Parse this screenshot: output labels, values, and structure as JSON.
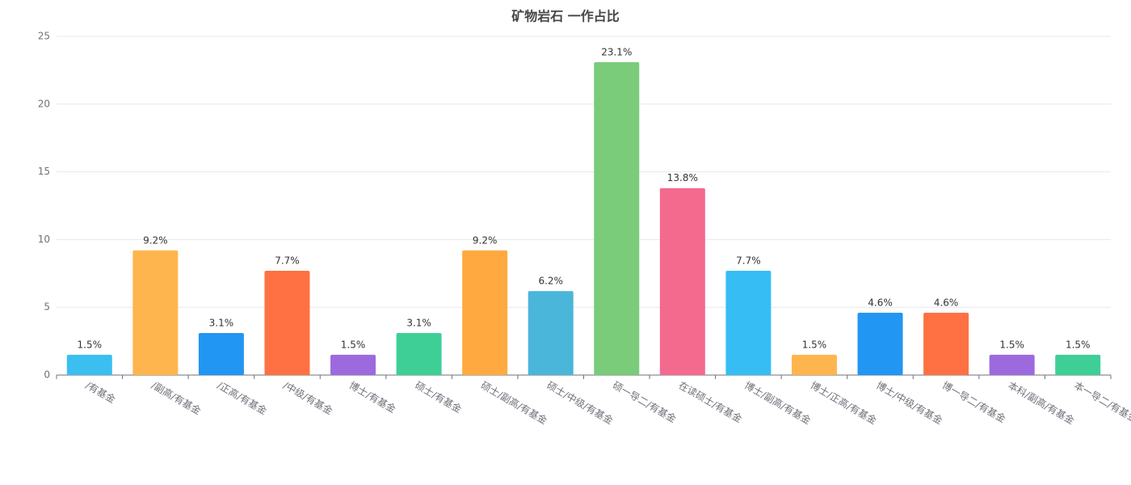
{
  "chart_data": {
    "type": "bar",
    "title": "矿物岩石 一作占比",
    "categories": [
      "/有基金",
      "/副高/有基金",
      "/正高/有基金",
      "/中级/有基金",
      "博士/有基金",
      "硕士/有基金",
      "硕士/副高/有基金",
      "硕士/中级/有基金",
      "硕一导二/有基金",
      "在读硕士/有基金",
      "博士/副高/有基金",
      "博士/正高/有基金",
      "博士/中级/有基金",
      "博一导二/有基金",
      "本科/副高/有基金",
      "本一导二/有基金"
    ],
    "values": [
      1.5,
      9.2,
      3.1,
      7.7,
      1.5,
      3.1,
      9.2,
      6.2,
      23.1,
      13.8,
      7.7,
      1.5,
      4.6,
      4.6,
      1.5,
      1.5
    ],
    "value_labels": [
      "1.5%",
      "9.2%",
      "3.1%",
      "7.7%",
      "1.5%",
      "3.1%",
      "9.2%",
      "6.2%",
      "23.1%",
      "13.8%",
      "7.7%",
      "1.5%",
      "4.6%",
      "4.6%",
      "1.5%",
      "1.5%"
    ],
    "colors": [
      "#3bbff1",
      "#ffb54d",
      "#2196f3",
      "#ff7043",
      "#9c6ade",
      "#3ecf97",
      "#ffa940",
      "#4ab6d9",
      "#7acb7a",
      "#f46a8e",
      "#36bdf4",
      "#ffb54d",
      "#2196f3",
      "#ff7043",
      "#9c6ade",
      "#3ecf97"
    ],
    "ylim": [
      0,
      25
    ],
    "yticks": [
      0,
      5,
      10,
      15,
      20,
      25
    ],
    "grid": true
  }
}
